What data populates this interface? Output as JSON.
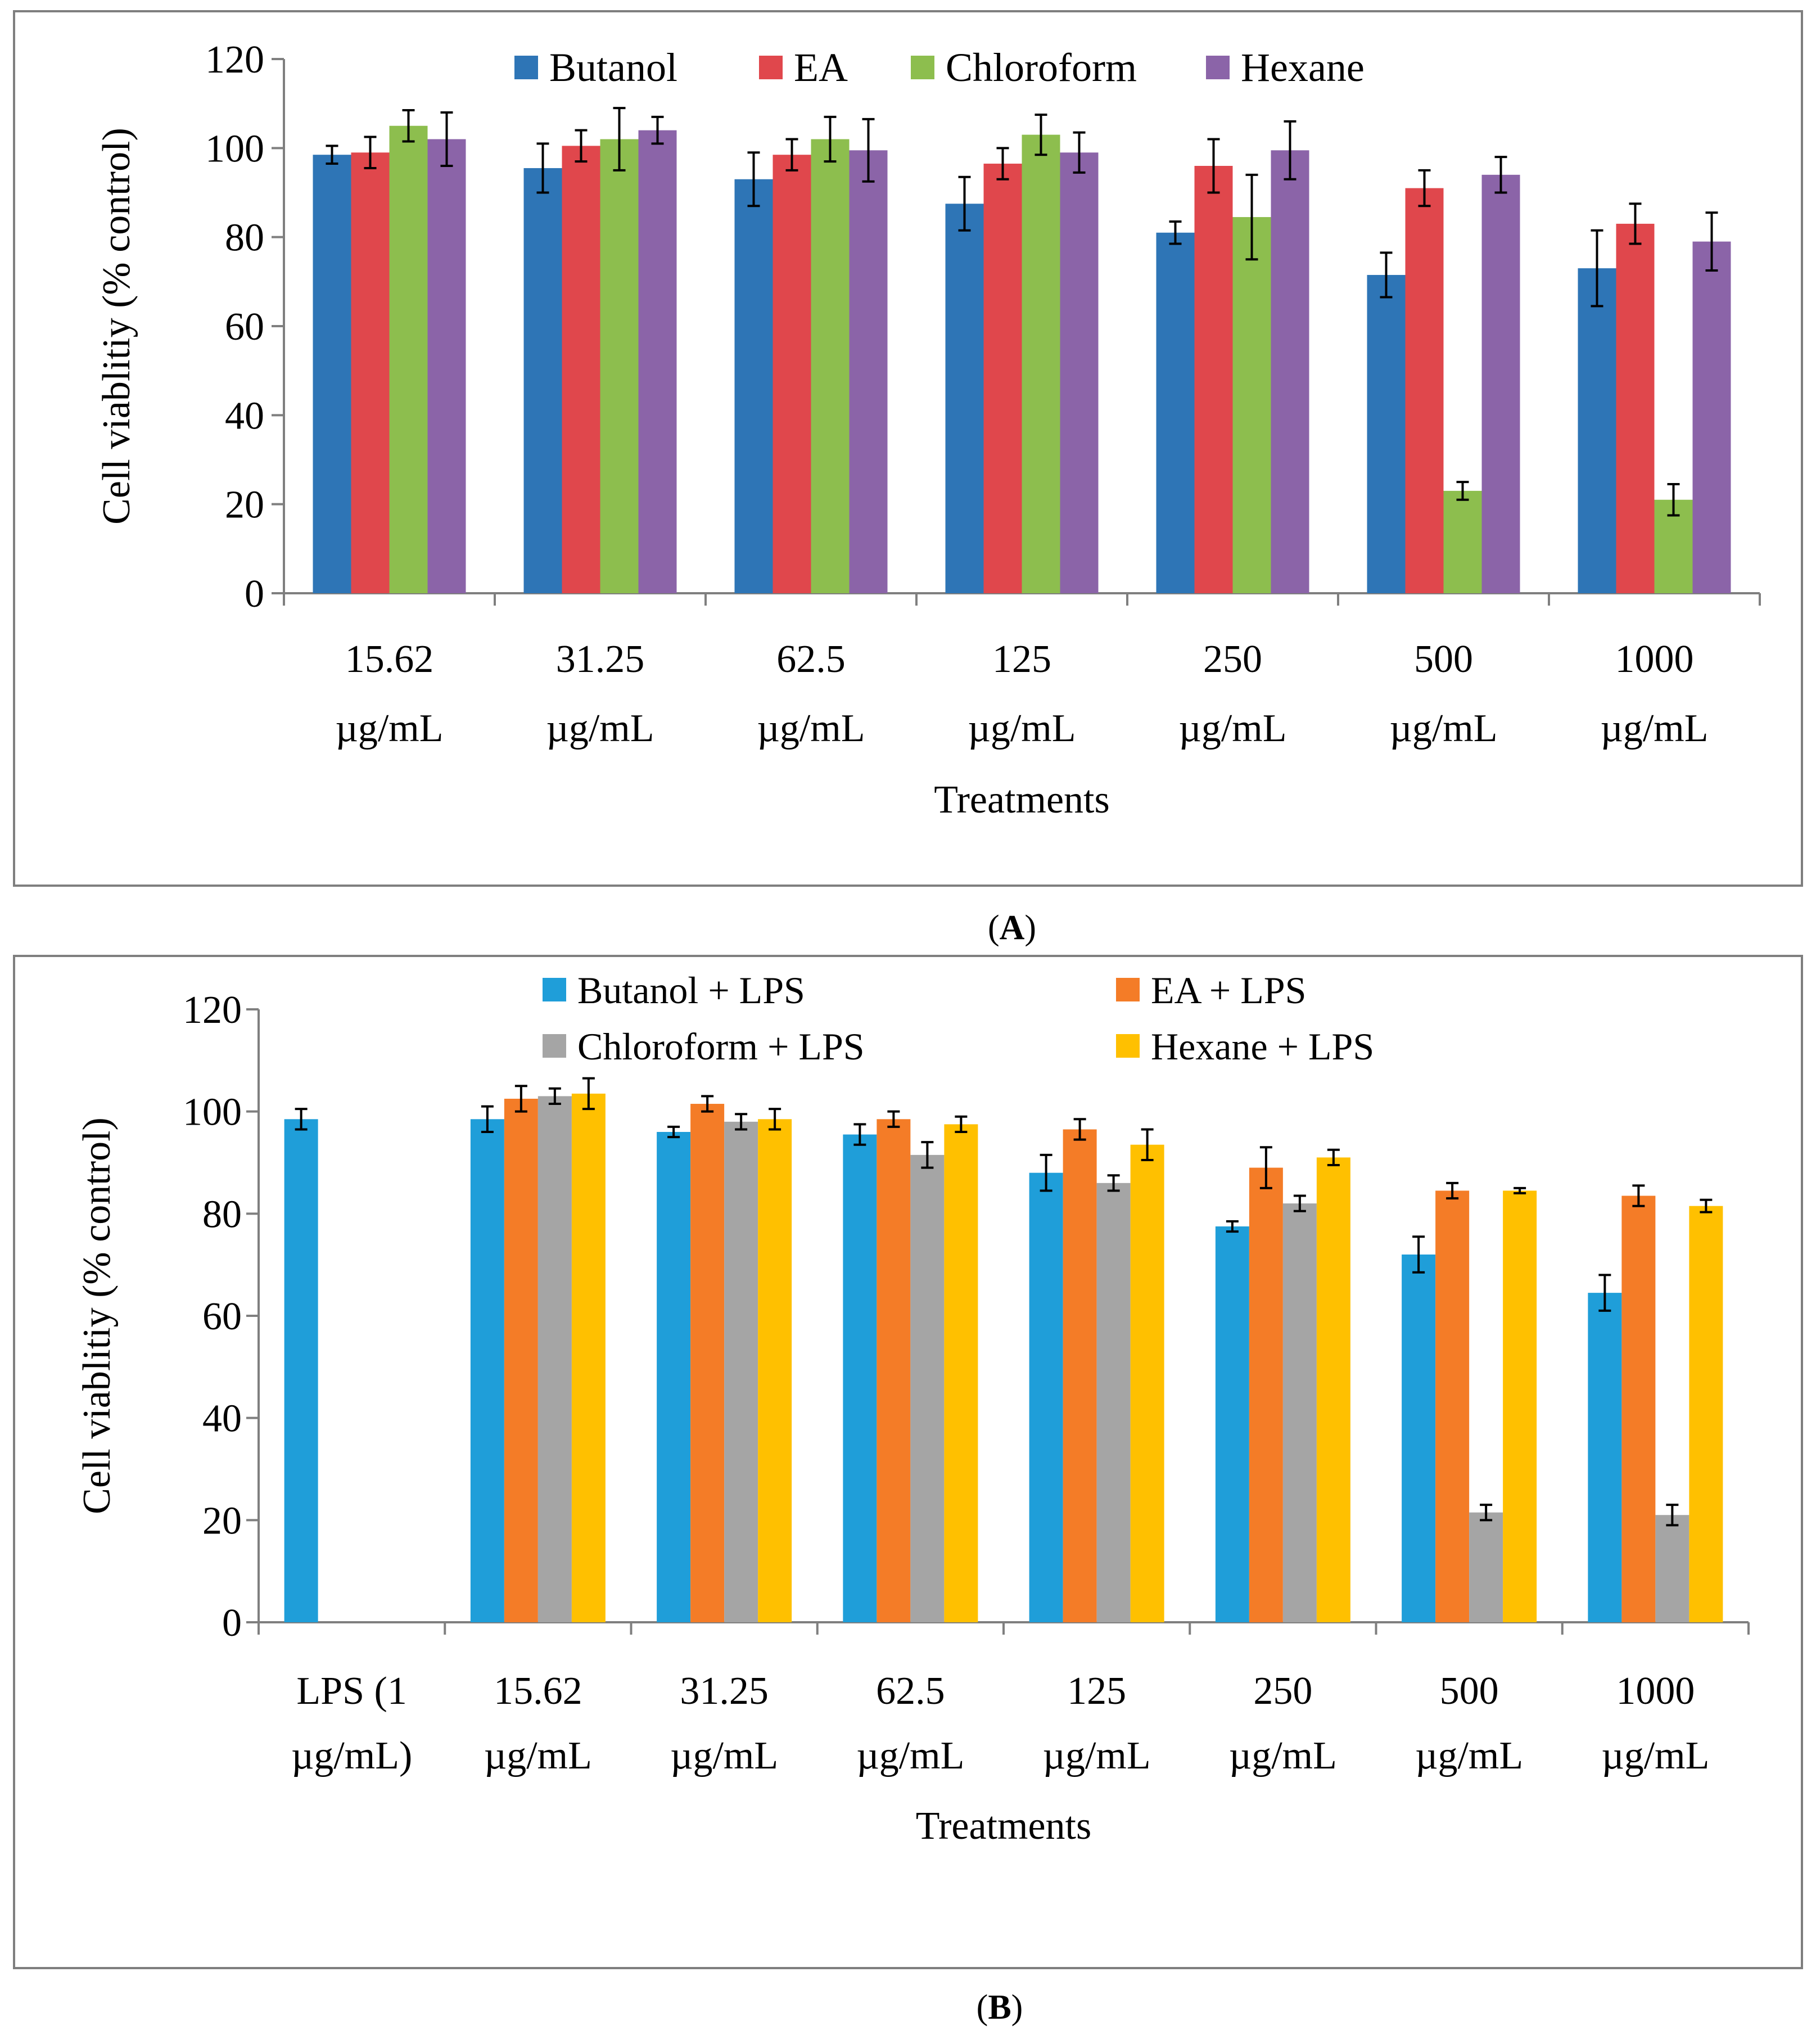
{
  "figure": {
    "panel_a_label": "A",
    "panel_b_label": "B"
  },
  "chart_data": [
    {
      "type": "bar",
      "panel": "A",
      "title": "",
      "xlabel": "Treatments",
      "ylabel": "Cell viablitiy (% control)",
      "ylim": [
        0,
        120
      ],
      "yticks": [
        "0",
        "20",
        "40",
        "60",
        "80",
        "100",
        "120"
      ],
      "categories": [
        [
          "15.62",
          "µg/mL"
        ],
        [
          "31.25",
          "µg/mL"
        ],
        [
          "62.5",
          "µg/mL"
        ],
        [
          "125",
          "µg/mL"
        ],
        [
          "250",
          "µg/mL"
        ],
        [
          "500",
          "µg/mL"
        ],
        [
          "1000",
          "µg/mL"
        ]
      ],
      "legend_position": "top",
      "series": [
        {
          "name": "Butanol",
          "color": "#2E75B6",
          "values": [
            98.5,
            95.5,
            93,
            87.5,
            81,
            71.5,
            73
          ],
          "errors": [
            2,
            5.5,
            6,
            6,
            2.5,
            5,
            8.5
          ]
        },
        {
          "name": "EA",
          "color": "#E0474C",
          "values": [
            99,
            100.5,
            98.5,
            96.5,
            96,
            91,
            83
          ],
          "errors": [
            3.5,
            3.5,
            3.5,
            3.5,
            6,
            4,
            4.5
          ]
        },
        {
          "name": "Chloroform",
          "color": "#8DBE4E",
          "values": [
            105,
            102,
            102,
            103,
            84.5,
            23,
            21
          ],
          "errors": [
            3.5,
            7,
            5,
            4.5,
            9.5,
            2,
            3.5
          ]
        },
        {
          "name": "Hexane",
          "color": "#8B64A8",
          "values": [
            102,
            104,
            99.5,
            99,
            99.5,
            94,
            79
          ],
          "errors": [
            6,
            3,
            7,
            4.5,
            6.5,
            4,
            6.5
          ]
        }
      ]
    },
    {
      "type": "bar",
      "panel": "B",
      "title": "",
      "xlabel": "Treatments",
      "ylabel": "Cell viablitiy (% control)",
      "ylim": [
        0,
        120
      ],
      "yticks": [
        "0",
        "20",
        "40",
        "60",
        "80",
        "100",
        "120"
      ],
      "categories": [
        [
          "LPS (1",
          "µg/mL)"
        ],
        [
          "15.62",
          "µg/mL"
        ],
        [
          "31.25",
          "µg/mL"
        ],
        [
          "62.5",
          "µg/mL"
        ],
        [
          "125",
          "µg/mL"
        ],
        [
          "250",
          "µg/mL"
        ],
        [
          "500",
          "µg/mL"
        ],
        [
          "1000",
          "µg/mL"
        ]
      ],
      "legend_position": "top",
      "series": [
        {
          "name": "Butanol + LPS",
          "color": "#1F9ED9",
          "values": [
            98.5,
            98.5,
            96,
            95.5,
            88,
            77.5,
            72,
            64.5
          ],
          "errors": [
            2,
            2.5,
            1,
            2,
            3.5,
            1,
            3.5,
            3.5
          ]
        },
        {
          "name": "EA + LPS",
          "color": "#F47C27",
          "values": [
            null,
            102.5,
            101.5,
            98.5,
            96.5,
            89,
            84.5,
            83.5
          ],
          "errors": [
            null,
            2.5,
            1.5,
            1.5,
            2,
            4,
            1.5,
            2
          ]
        },
        {
          "name": "Chloroform + LPS",
          "color": "#A5A5A5",
          "values": [
            null,
            103,
            98,
            91.5,
            86,
            82,
            21.5,
            21
          ],
          "errors": [
            null,
            1.5,
            1.5,
            2.5,
            1.5,
            1.5,
            1.5,
            2
          ]
        },
        {
          "name": "Hexane + LPS",
          "color": "#FFC000",
          "values": [
            null,
            103.5,
            98.5,
            97.5,
            93.5,
            91,
            84.5,
            81.5
          ],
          "errors": [
            null,
            3,
            2,
            1.5,
            3,
            1.5,
            0.5,
            1.2
          ]
        }
      ]
    }
  ]
}
